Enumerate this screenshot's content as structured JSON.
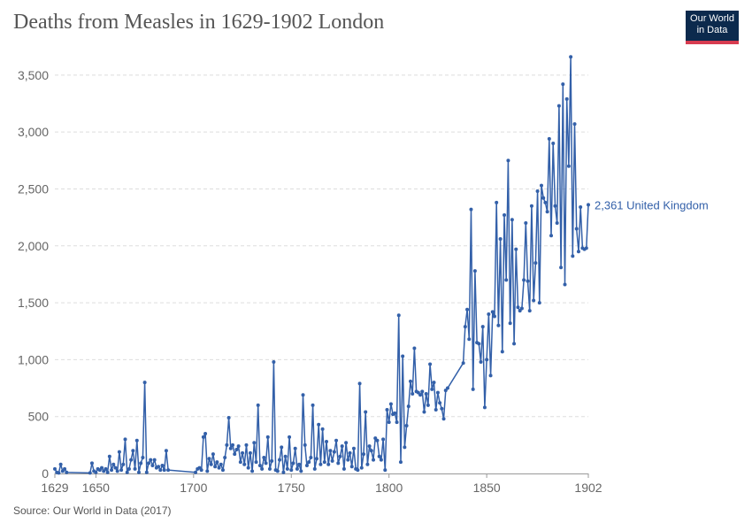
{
  "header": {
    "title": "Deaths from Measles in 1629-1902 London",
    "logo_line1": "Our World",
    "logo_line2": "in Data"
  },
  "footer": {
    "source": "Source: Our World in Data (2017)"
  },
  "colors": {
    "series": "#3360a9",
    "grid": "#dddddd",
    "logo_bg": "#0c2a4d",
    "logo_accent": "#d73c50"
  },
  "chart_data": {
    "type": "line",
    "title": "Deaths from Measles in 1629-1902 London",
    "xlabel": "",
    "ylabel": "",
    "xlim": [
      1629,
      1902
    ],
    "ylim": [
      0,
      3600
    ],
    "x_ticks": [
      1629,
      1650,
      1700,
      1750,
      1800,
      1850,
      1902
    ],
    "x_tick_labels": [
      "1629",
      "1650",
      "1700",
      "1750",
      "1800",
      "1850",
      "1902"
    ],
    "y_ticks": [
      0,
      500,
      1000,
      1500,
      2000,
      2500,
      3000,
      3500
    ],
    "y_tick_labels": [
      "0",
      "500",
      "1,000",
      "1,500",
      "2,000",
      "2,500",
      "3,000",
      "3,500"
    ],
    "grid": "horizontal dashed",
    "end_label": "2,361 United Kingdom",
    "series": [
      {
        "name": "United Kingdom",
        "points": [
          [
            1629,
            40
          ],
          [
            1630,
            10
          ],
          [
            1631,
            5
          ],
          [
            1632,
            80
          ],
          [
            1633,
            20
          ],
          [
            1634,
            40
          ],
          [
            1635,
            10
          ],
          [
            1647,
            5
          ],
          [
            1648,
            90
          ],
          [
            1649,
            20
          ],
          [
            1650,
            10
          ],
          [
            1651,
            40
          ],
          [
            1652,
            30
          ],
          [
            1653,
            50
          ],
          [
            1654,
            20
          ],
          [
            1655,
            40
          ],
          [
            1656,
            10
          ],
          [
            1657,
            150
          ],
          [
            1658,
            30
          ],
          [
            1659,
            80
          ],
          [
            1660,
            50
          ],
          [
            1661,
            20
          ],
          [
            1662,
            190
          ],
          [
            1663,
            30
          ],
          [
            1664,
            80
          ],
          [
            1665,
            300
          ],
          [
            1666,
            10
          ],
          [
            1667,
            40
          ],
          [
            1668,
            120
          ],
          [
            1669,
            200
          ],
          [
            1670,
            40
          ],
          [
            1671,
            290
          ],
          [
            1672,
            10
          ],
          [
            1673,
            90
          ],
          [
            1674,
            140
          ],
          [
            1675,
            800
          ],
          [
            1676,
            10
          ],
          [
            1677,
            90
          ],
          [
            1678,
            120
          ],
          [
            1679,
            70
          ],
          [
            1680,
            120
          ],
          [
            1681,
            50
          ],
          [
            1682,
            60
          ],
          [
            1683,
            30
          ],
          [
            1684,
            70
          ],
          [
            1685,
            30
          ],
          [
            1686,
            200
          ],
          [
            1687,
            30
          ],
          [
            1701,
            10
          ],
          [
            1702,
            40
          ],
          [
            1703,
            50
          ],
          [
            1704,
            30
          ],
          [
            1705,
            320
          ],
          [
            1706,
            350
          ],
          [
            1707,
            20
          ],
          [
            1708,
            130
          ],
          [
            1709,
            80
          ],
          [
            1710,
            170
          ],
          [
            1711,
            60
          ],
          [
            1712,
            100
          ],
          [
            1713,
            50
          ],
          [
            1714,
            80
          ],
          [
            1715,
            30
          ],
          [
            1716,
            140
          ],
          [
            1717,
            250
          ],
          [
            1718,
            490
          ],
          [
            1719,
            220
          ],
          [
            1720,
            250
          ],
          [
            1721,
            170
          ],
          [
            1722,
            210
          ],
          [
            1723,
            240
          ],
          [
            1724,
            100
          ],
          [
            1725,
            180
          ],
          [
            1726,
            80
          ],
          [
            1727,
            250
          ],
          [
            1728,
            50
          ],
          [
            1729,
            180
          ],
          [
            1730,
            20
          ],
          [
            1731,
            270
          ],
          [
            1732,
            100
          ],
          [
            1733,
            600
          ],
          [
            1734,
            70
          ],
          [
            1735,
            40
          ],
          [
            1736,
            140
          ],
          [
            1737,
            90
          ],
          [
            1738,
            320
          ],
          [
            1739,
            40
          ],
          [
            1740,
            110
          ],
          [
            1741,
            980
          ],
          [
            1742,
            30
          ],
          [
            1743,
            20
          ],
          [
            1744,
            120
          ],
          [
            1745,
            230
          ],
          [
            1746,
            10
          ],
          [
            1747,
            150
          ],
          [
            1748,
            40
          ],
          [
            1749,
            320
          ],
          [
            1750,
            30
          ],
          [
            1751,
            90
          ],
          [
            1752,
            220
          ],
          [
            1753,
            40
          ],
          [
            1754,
            80
          ],
          [
            1755,
            20
          ],
          [
            1756,
            690
          ],
          [
            1757,
            250
          ],
          [
            1758,
            70
          ],
          [
            1759,
            100
          ],
          [
            1760,
            140
          ],
          [
            1761,
            600
          ],
          [
            1762,
            40
          ],
          [
            1763,
            130
          ],
          [
            1764,
            430
          ],
          [
            1765,
            80
          ],
          [
            1766,
            390
          ],
          [
            1767,
            100
          ],
          [
            1768,
            280
          ],
          [
            1769,
            80
          ],
          [
            1770,
            200
          ],
          [
            1771,
            110
          ],
          [
            1772,
            190
          ],
          [
            1773,
            290
          ],
          [
            1774,
            90
          ],
          [
            1775,
            150
          ],
          [
            1776,
            240
          ],
          [
            1777,
            40
          ],
          [
            1778,
            270
          ],
          [
            1779,
            120
          ],
          [
            1780,
            180
          ],
          [
            1781,
            60
          ],
          [
            1782,
            220
          ],
          [
            1783,
            40
          ],
          [
            1784,
            30
          ],
          [
            1785,
            790
          ],
          [
            1786,
            50
          ],
          [
            1787,
            170
          ],
          [
            1788,
            540
          ],
          [
            1789,
            80
          ],
          [
            1790,
            240
          ],
          [
            1791,
            200
          ],
          [
            1792,
            120
          ],
          [
            1793,
            310
          ],
          [
            1794,
            290
          ],
          [
            1795,
            150
          ],
          [
            1796,
            120
          ],
          [
            1797,
            300
          ],
          [
            1798,
            30
          ],
          [
            1799,
            560
          ],
          [
            1800,
            450
          ],
          [
            1801,
            610
          ],
          [
            1802,
            520
          ],
          [
            1803,
            530
          ],
          [
            1804,
            450
          ],
          [
            1805,
            1390
          ],
          [
            1806,
            100
          ],
          [
            1807,
            1030
          ],
          [
            1808,
            230
          ],
          [
            1809,
            420
          ],
          [
            1810,
            590
          ],
          [
            1811,
            810
          ],
          [
            1812,
            700
          ],
          [
            1813,
            1100
          ],
          [
            1814,
            720
          ],
          [
            1815,
            710
          ],
          [
            1816,
            690
          ],
          [
            1817,
            720
          ],
          [
            1818,
            540
          ],
          [
            1819,
            700
          ],
          [
            1820,
            600
          ],
          [
            1821,
            960
          ],
          [
            1822,
            740
          ],
          [
            1823,
            800
          ],
          [
            1824,
            560
          ],
          [
            1825,
            710
          ],
          [
            1826,
            620
          ],
          [
            1827,
            570
          ],
          [
            1828,
            480
          ],
          [
            1829,
            730
          ],
          [
            1830,
            750
          ],
          [
            1838,
            970
          ],
          [
            1839,
            1290
          ],
          [
            1840,
            1440
          ],
          [
            1841,
            1180
          ],
          [
            1842,
            2320
          ],
          [
            1843,
            740
          ],
          [
            1844,
            1780
          ],
          [
            1845,
            1150
          ],
          [
            1846,
            1140
          ],
          [
            1847,
            980
          ],
          [
            1848,
            1290
          ],
          [
            1849,
            580
          ],
          [
            1850,
            1000
          ],
          [
            1851,
            1400
          ],
          [
            1852,
            860
          ],
          [
            1853,
            1420
          ],
          [
            1854,
            1380
          ],
          [
            1855,
            2380
          ],
          [
            1856,
            1300
          ],
          [
            1857,
            2060
          ],
          [
            1858,
            1070
          ],
          [
            1859,
            2270
          ],
          [
            1860,
            1700
          ],
          [
            1861,
            2750
          ],
          [
            1862,
            1320
          ],
          [
            1863,
            2230
          ],
          [
            1864,
            1140
          ],
          [
            1865,
            1970
          ],
          [
            1866,
            1460
          ],
          [
            1867,
            1430
          ],
          [
            1868,
            1450
          ],
          [
            1869,
            1700
          ],
          [
            1870,
            2200
          ],
          [
            1871,
            1690
          ],
          [
            1872,
            1430
          ],
          [
            1873,
            2350
          ],
          [
            1874,
            1520
          ],
          [
            1875,
            1850
          ],
          [
            1876,
            2480
          ],
          [
            1877,
            1500
          ],
          [
            1878,
            2530
          ],
          [
            1879,
            2420
          ],
          [
            1880,
            2380
          ],
          [
            1881,
            2300
          ],
          [
            1882,
            2940
          ],
          [
            1883,
            2090
          ],
          [
            1884,
            2900
          ],
          [
            1885,
            2350
          ],
          [
            1886,
            2200
          ],
          [
            1887,
            3230
          ],
          [
            1888,
            1810
          ],
          [
            1889,
            3420
          ],
          [
            1890,
            1660
          ],
          [
            1891,
            3290
          ],
          [
            1892,
            2700
          ],
          [
            1893,
            3660
          ],
          [
            1894,
            1910
          ],
          [
            1895,
            3070
          ],
          [
            1896,
            2150
          ],
          [
            1897,
            1950
          ],
          [
            1898,
            2340
          ],
          [
            1899,
            1980
          ],
          [
            1900,
            1970
          ],
          [
            1901,
            1980
          ],
          [
            1902,
            2361
          ]
        ]
      }
    ]
  }
}
